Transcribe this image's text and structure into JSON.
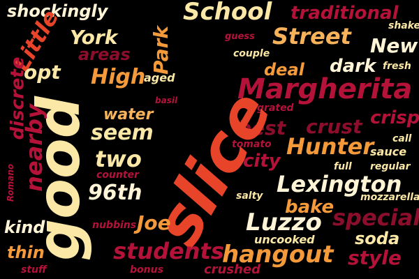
{
  "colors": {
    "background": "#000000",
    "cream": "#fce8a6",
    "orange": "#f59a3a",
    "red": "#e8442a",
    "crimson": "#b5123a",
    "dark_red": "#8c0e2c"
  },
  "words": {
    "shockingly": "shockingly",
    "school": "School",
    "traditional": "traditional",
    "little": "Little",
    "york": "York",
    "park": "Park",
    "guess": "guess",
    "street": "Street",
    "shaker": "shaker",
    "areas": "areas",
    "new": "New",
    "couple": "couple",
    "discrete": "discrete",
    "opt": "opt",
    "dark": "dark",
    "fresh": "fresh",
    "deal": "deal",
    "high": "High",
    "aged": "aged",
    "margherita": "Margherita",
    "good": "good",
    "basil": "basil",
    "grated": "grated",
    "water": "water",
    "crisp": "crisp",
    "nearby": "nearby",
    "seem": "seem",
    "best": "best",
    "crust": "crust",
    "slice": "slice",
    "tomato": "tomato",
    "hunter": "Hunter",
    "call": "call",
    "two": "two",
    "city": "city",
    "sauce": "sauce",
    "counter": "counter",
    "full": "full",
    "regular": "regular",
    "romano": "Romano",
    "96th": "96th",
    "lexington": "Lexington",
    "salty": "salty",
    "mozzarella": "mozzarella",
    "bake": "bake",
    "kind": "kind",
    "nubbins": "nubbins",
    "joe": "Joe",
    "luzzo": "Luzzo",
    "special": "special",
    "uncooked": "uncooked",
    "soda": "soda",
    "thin": "thin",
    "students": "students",
    "hangout": "hangout",
    "style": "style",
    "stuff": "stuff",
    "bonus": "bonus",
    "crushed": "crushed"
  }
}
